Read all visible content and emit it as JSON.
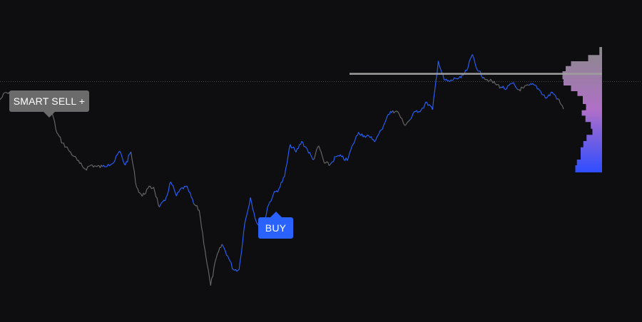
{
  "chart_data": {
    "type": "line",
    "title": "",
    "xlabel": "",
    "ylabel": "",
    "grid": false,
    "legend": "none",
    "ylim": [
      0,
      100
    ],
    "xlim": [
      0,
      99
    ],
    "series": [
      {
        "values": [
          78,
          80.6,
          79.5,
          79.4,
          77.5,
          79.5,
          76.4,
          77.3,
          76.9,
          74.8,
          66.4,
          62.8,
          60.5,
          58.1,
          55.6,
          53.7,
          55.1,
          54.5,
          54.5,
          55.4,
          56.0,
          60.0,
          55.0,
          59.7,
          47.3,
          44.1,
          46.9,
          47.3,
          40.3,
          42.5,
          49.2,
          44.2,
          47.2,
          46.9,
          41.6,
          39.2,
          25.4,
          12.8,
          22.5,
          27.3,
          23.2,
          18.4,
          18.4,
          34.6,
          43.7,
          35.3,
          30.5,
          40.3,
          44.7,
          46.8,
          51.1,
          62.3,
          59.6,
          63.4,
          60.5,
          56.9,
          61.8,
          55.7,
          55.2,
          58.0,
          58.0,
          56.6,
          62.3,
          66.6,
          65.4,
          64.7,
          63.8,
          67.4,
          72.1,
          74.2,
          73.5,
          69.2,
          70.9,
          73.9,
          74.5,
          77.1,
          74.5,
          91.6,
          85.0,
          84.3,
          85.5,
          85.6,
          88.2,
          93.9,
          88.0,
          85.9,
          84.7,
          83.6,
          82.5,
          81.8,
          83.8,
          81.5,
          82.1,
          83.1,
          83.1,
          80.9,
          78.5,
          80.7,
          78.3,
          74.7
        ],
        "signal": [
          "sell",
          "sell",
          "sell",
          "sell",
          "sell",
          "sell",
          "sell",
          "sell",
          "sell",
          "sell",
          "sell",
          "sell",
          "sell",
          "sell",
          "sell",
          "sell",
          "sell",
          "sell",
          "buy",
          "buy",
          "buy",
          "buy",
          "buy",
          "sell",
          "sell",
          "sell",
          "sell",
          "sell",
          "buy",
          "buy",
          "buy",
          "buy",
          "buy",
          "buy",
          "sell",
          "sell",
          "sell",
          "sell",
          "sell",
          "buy",
          "buy",
          "buy",
          "buy",
          "buy",
          "buy",
          "buy",
          "buy",
          "buy",
          "buy",
          "buy",
          "buy",
          "buy",
          "buy",
          "buy",
          "buy",
          "sell",
          "sell",
          "sell",
          "buy",
          "buy",
          "buy",
          "buy",
          "buy",
          "buy",
          "buy",
          "buy",
          "buy",
          "buy",
          "buy",
          "sell",
          "sell",
          "sell",
          "buy",
          "buy",
          "buy",
          "buy",
          "buy",
          "buy",
          "buy",
          "buy",
          "buy",
          "buy",
          "buy",
          "buy",
          "buy",
          "sell",
          "sell",
          "sell",
          "buy",
          "buy",
          "buy",
          "sell",
          "sell",
          "buy",
          "buy",
          "buy",
          "buy",
          "buy",
          "sell",
          "sell"
        ]
      }
    ],
    "reference_line": {
      "y": 87.1
    },
    "signals": [
      {
        "label": "SMART SELL +",
        "type": "sell"
      },
      {
        "label": "BUY",
        "type": "buy"
      }
    ],
    "volume_profile": {
      "levels": [
        96.5,
        93.7,
        91.5,
        89.8,
        88.0,
        85.2,
        83.0,
        81.0,
        79.3,
        76.5,
        74.3,
        72.4,
        70.2,
        67.8,
        65.7,
        63.5,
        61.3,
        59.2,
        57.0,
        55.0,
        52.5
      ],
      "volumes": [
        0.05,
        0.26,
        0.58,
        0.68,
        0.74,
        0.72,
        0.58,
        0.46,
        0.36,
        0.3,
        0.38,
        0.31,
        0.21,
        0.18,
        0.29,
        0.35,
        0.4,
        0.4,
        0.47,
        0.5,
        0.56
      ]
    },
    "colors": {
      "background": "#0e0e10",
      "line_buy": "#2962ff",
      "line_sell": "#6b6b6b",
      "reference_line": "#9e9e9e",
      "dotted_line": "#4a4a4a",
      "profile_top": "#8a8a8a",
      "profile_mid": "#b06fc8",
      "profile_bottom": "#2e4dff"
    }
  }
}
